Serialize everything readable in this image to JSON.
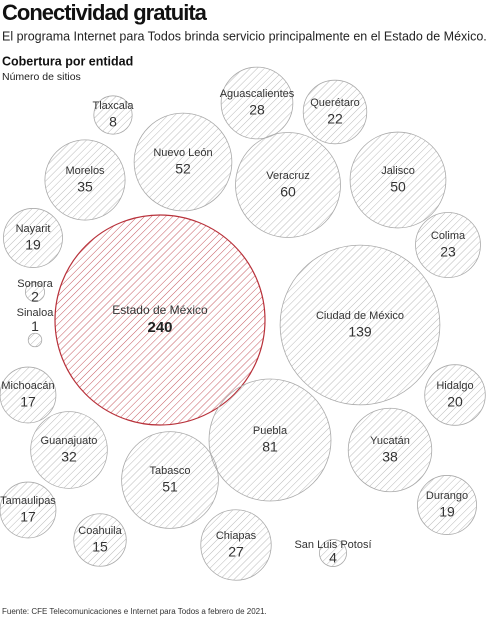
{
  "chart_data": {
    "type": "packed_bubble",
    "title": "Conectividad gratuita",
    "subtitle": "El programa Internet para Todos brinda servicio principalmente en el Estado de México.",
    "section_title": "Cobertura por entidad",
    "unit_label": "Número de sitios",
    "source": "Fuente: CFE Telecomunicaciones e Internet para Todos a febrero de 2021.",
    "categories": [
      "Estado de México",
      "Ciudad de México",
      "Puebla",
      "Veracruz",
      "Nuevo León",
      "Tabasco",
      "Jalisco",
      "Yucatán",
      "Morelos",
      "Guanajuato",
      "Aguascalientes",
      "Chiapas",
      "Colima",
      "Querétaro",
      "Hidalgo",
      "Nayarit",
      "Durango",
      "Michoacán",
      "Tamaulipas",
      "Coahuila",
      "Tlaxcala",
      "San Luis Potosí",
      "Sonora",
      "Sinaloa"
    ],
    "values": [
      240,
      139,
      81,
      60,
      52,
      51,
      50,
      38,
      35,
      32,
      28,
      27,
      23,
      22,
      20,
      19,
      19,
      17,
      17,
      15,
      8,
      4,
      2,
      1
    ],
    "colors": [
      "#b8313a",
      "#aaaaaa",
      "#aaaaaa",
      "#aaaaaa",
      "#aaaaaa",
      "#aaaaaa",
      "#aaaaaa",
      "#aaaaaa",
      "#aaaaaa",
      "#aaaaaa",
      "#aaaaaa",
      "#aaaaaa",
      "#aaaaaa",
      "#aaaaaa",
      "#aaaaaa",
      "#aaaaaa",
      "#aaaaaa",
      "#aaaaaa",
      "#aaaaaa",
      "#aaaaaa",
      "#aaaaaa",
      "#aaaaaa",
      "#aaaaaa",
      "#aaaaaa"
    ]
  }
}
